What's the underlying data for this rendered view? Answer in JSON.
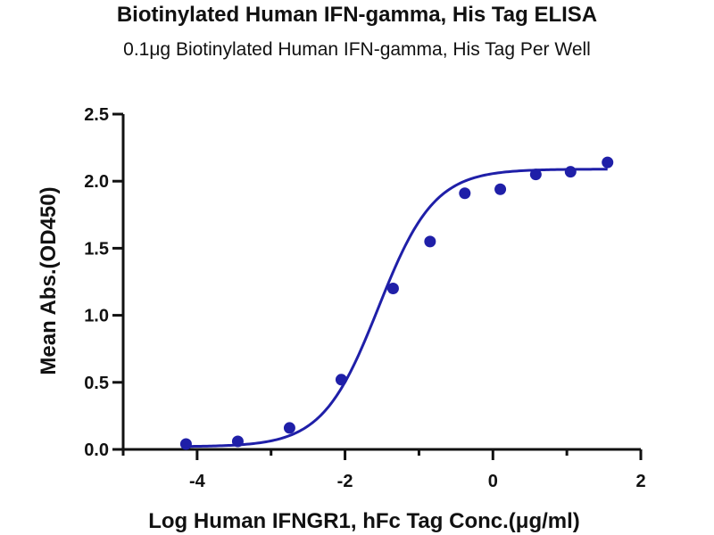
{
  "chart_data": {
    "type": "scatter",
    "title": "Biotinylated Human IFN-gamma, His Tag ELISA",
    "subtitle": "0.1μg Biotinylated Human IFN-gamma, His Tag Per Well",
    "xlabel": "Log Human IFNGR1, hFc Tag Conc.(μg/ml)",
    "ylabel": "Mean Abs.(OD450)",
    "xlim": [
      -5.0,
      2.0
    ],
    "ylim": [
      0,
      2.5
    ],
    "xticks": [
      -4,
      -2,
      0,
      2
    ],
    "xtick_labels": [
      "-4",
      "-2",
      "0",
      "2"
    ],
    "yticks": [
      0,
      0.5,
      1.0,
      1.5,
      2.0,
      2.5
    ],
    "ytick_labels": [
      "0.0",
      "0.5",
      "1.0",
      "1.5",
      "2.0",
      "2.5"
    ],
    "grid": false,
    "series": [
      {
        "x": [
          -4.15,
          -3.45,
          -2.75,
          -2.05,
          -1.35,
          -0.85,
          -0.38,
          0.1,
          0.58,
          1.05,
          1.55
        ],
        "y": [
          0.04,
          0.06,
          0.16,
          0.52,
          1.2,
          1.55,
          1.91,
          1.94,
          2.05,
          2.07,
          2.14
        ],
        "color": "#1f1fa8"
      }
    ],
    "fit_curve": {
      "model": "4PL",
      "bottom": 0.02,
      "top": 2.09,
      "log_ec50": -1.55,
      "hill_slope": 1.15,
      "x_range": [
        -4.15,
        1.55
      ],
      "color": "#1f1fa8"
    }
  }
}
